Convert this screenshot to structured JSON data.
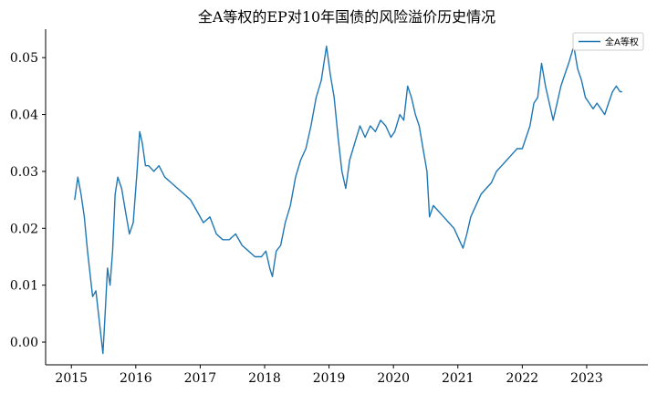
{
  "chart_data": {
    "type": "line",
    "title": "全A等权的EP对10年国债的风险溢价历史情况",
    "xlabel": "",
    "ylabel": "",
    "xlim": [
      2014.6,
      2023.95
    ],
    "ylim": [
      -0.004,
      0.055
    ],
    "grid": false,
    "legend_position": "top-right",
    "x_ticks": [
      2015,
      2016,
      2017,
      2018,
      2019,
      2020,
      2021,
      2022,
      2023
    ],
    "x_tick_labels": [
      "2015",
      "2016",
      "2017",
      "2018",
      "2019",
      "2020",
      "2021",
      "2022",
      "2023"
    ],
    "y_ticks": [
      0.0,
      0.01,
      0.02,
      0.03,
      0.04,
      0.05
    ],
    "y_tick_labels": [
      "0.00",
      "0.01",
      "0.02",
      "0.03",
      "0.04",
      "0.05"
    ],
    "series": [
      {
        "name": "全A等权",
        "color": "#1f77b4",
        "points": [
          [
            2015.05,
            0.025
          ],
          [
            2015.1,
            0.029
          ],
          [
            2015.15,
            0.026
          ],
          [
            2015.2,
            0.022
          ],
          [
            2015.25,
            0.016
          ],
          [
            2015.3,
            0.011
          ],
          [
            2015.33,
            0.008
          ],
          [
            2015.38,
            0.009
          ],
          [
            2015.42,
            0.005
          ],
          [
            2015.46,
            0.001
          ],
          [
            2015.49,
            -0.002
          ],
          [
            2015.52,
            0.004
          ],
          [
            2015.56,
            0.013
          ],
          [
            2015.6,
            0.01
          ],
          [
            2015.64,
            0.016
          ],
          [
            2015.68,
            0.026
          ],
          [
            2015.72,
            0.029
          ],
          [
            2015.78,
            0.027
          ],
          [
            2015.84,
            0.023
          ],
          [
            2015.9,
            0.019
          ],
          [
            2015.96,
            0.021
          ],
          [
            2016.02,
            0.03
          ],
          [
            2016.06,
            0.037
          ],
          [
            2016.1,
            0.035
          ],
          [
            2016.15,
            0.031
          ],
          [
            2016.2,
            0.031
          ],
          [
            2016.28,
            0.03
          ],
          [
            2016.36,
            0.031
          ],
          [
            2016.45,
            0.029
          ],
          [
            2016.55,
            0.028
          ],
          [
            2016.65,
            0.027
          ],
          [
            2016.75,
            0.026
          ],
          [
            2016.85,
            0.025
          ],
          [
            2016.95,
            0.023
          ],
          [
            2017.05,
            0.021
          ],
          [
            2017.15,
            0.022
          ],
          [
            2017.25,
            0.019
          ],
          [
            2017.35,
            0.018
          ],
          [
            2017.45,
            0.018
          ],
          [
            2017.55,
            0.019
          ],
          [
            2017.65,
            0.017
          ],
          [
            2017.75,
            0.016
          ],
          [
            2017.85,
            0.015
          ],
          [
            2017.95,
            0.015
          ],
          [
            2018.02,
            0.016
          ],
          [
            2018.08,
            0.013
          ],
          [
            2018.12,
            0.0115
          ],
          [
            2018.18,
            0.016
          ],
          [
            2018.25,
            0.017
          ],
          [
            2018.32,
            0.021
          ],
          [
            2018.4,
            0.024
          ],
          [
            2018.48,
            0.029
          ],
          [
            2018.56,
            0.032
          ],
          [
            2018.64,
            0.034
          ],
          [
            2018.72,
            0.038
          ],
          [
            2018.8,
            0.043
          ],
          [
            2018.88,
            0.046
          ],
          [
            2018.96,
            0.052
          ],
          [
            2019.02,
            0.047
          ],
          [
            2019.08,
            0.043
          ],
          [
            2019.14,
            0.036
          ],
          [
            2019.2,
            0.03
          ],
          [
            2019.26,
            0.027
          ],
          [
            2019.32,
            0.032
          ],
          [
            2019.4,
            0.035
          ],
          [
            2019.48,
            0.038
          ],
          [
            2019.56,
            0.036
          ],
          [
            2019.64,
            0.038
          ],
          [
            2019.72,
            0.037
          ],
          [
            2019.8,
            0.039
          ],
          [
            2019.88,
            0.038
          ],
          [
            2019.96,
            0.036
          ],
          [
            2020.02,
            0.037
          ],
          [
            2020.1,
            0.04
          ],
          [
            2020.16,
            0.039
          ],
          [
            2020.22,
            0.045
          ],
          [
            2020.28,
            0.043
          ],
          [
            2020.34,
            0.04
          ],
          [
            2020.4,
            0.038
          ],
          [
            2020.46,
            0.034
          ],
          [
            2020.52,
            0.03
          ],
          [
            2020.56,
            0.022
          ],
          [
            2020.62,
            0.024
          ],
          [
            2020.7,
            0.023
          ],
          [
            2020.78,
            0.022
          ],
          [
            2020.86,
            0.021
          ],
          [
            2020.94,
            0.02
          ],
          [
            2021.02,
            0.018
          ],
          [
            2021.08,
            0.0165
          ],
          [
            2021.14,
            0.019
          ],
          [
            2021.2,
            0.022
          ],
          [
            2021.28,
            0.024
          ],
          [
            2021.36,
            0.026
          ],
          [
            2021.44,
            0.027
          ],
          [
            2021.52,
            0.028
          ],
          [
            2021.6,
            0.03
          ],
          [
            2021.68,
            0.031
          ],
          [
            2021.76,
            0.032
          ],
          [
            2021.84,
            0.033
          ],
          [
            2021.92,
            0.034
          ],
          [
            2022.0,
            0.034
          ],
          [
            2022.06,
            0.036
          ],
          [
            2022.12,
            0.038
          ],
          [
            2022.18,
            0.042
          ],
          [
            2022.24,
            0.043
          ],
          [
            2022.3,
            0.049
          ],
          [
            2022.36,
            0.045
          ],
          [
            2022.42,
            0.042
          ],
          [
            2022.48,
            0.039
          ],
          [
            2022.54,
            0.042
          ],
          [
            2022.6,
            0.045
          ],
          [
            2022.66,
            0.047
          ],
          [
            2022.72,
            0.049
          ],
          [
            2022.8,
            0.052
          ],
          [
            2022.86,
            0.048
          ],
          [
            2022.92,
            0.046
          ],
          [
            2022.98,
            0.043
          ],
          [
            2023.04,
            0.042
          ],
          [
            2023.1,
            0.041
          ],
          [
            2023.16,
            0.042
          ],
          [
            2023.22,
            0.041
          ],
          [
            2023.28,
            0.04
          ],
          [
            2023.34,
            0.042
          ],
          [
            2023.4,
            0.044
          ],
          [
            2023.46,
            0.045
          ],
          [
            2023.52,
            0.044
          ],
          [
            2023.55,
            0.044
          ]
        ]
      }
    ]
  }
}
